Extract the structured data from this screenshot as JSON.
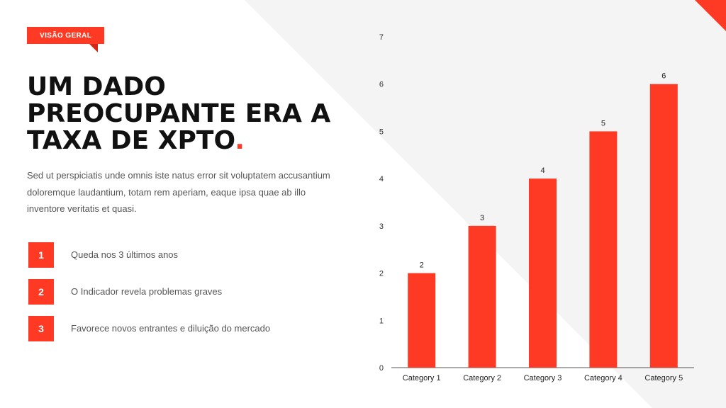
{
  "badge": {
    "label": "VISÃO GERAL"
  },
  "title": {
    "text": "UM DADO PREOCUPANTE ERA A TAXA DE XPTO",
    "dot": "."
  },
  "description": "Sed ut perspiciatis unde omnis iste natus error sit voluptatem accusantium doloremque laudantium, totam rem aperiam, eaque ipsa quae ab illo inventore veritatis et quasi.",
  "list": [
    {
      "number": "1",
      "text": "Queda nos 3 últimos anos"
    },
    {
      "number": "2",
      "text": "O Indicador revela problemas graves"
    },
    {
      "number": "3",
      "text": "Favorece novos entrantes e diluição do mercado"
    }
  ],
  "colors": {
    "accent": "#ff3a24",
    "background_shape": "#f4f4f4"
  },
  "chart_data": {
    "type": "bar",
    "categories": [
      "Category 1",
      "Category 2",
      "Category 3",
      "Category 4",
      "Category 5"
    ],
    "values": [
      2,
      3,
      4,
      5,
      6
    ],
    "data_labels": [
      "2",
      "3",
      "4",
      "5",
      "6"
    ],
    "ylim": [
      0,
      7
    ],
    "yticks": [
      "0",
      "1",
      "2",
      "3",
      "4",
      "5",
      "6",
      "7"
    ],
    "grid": false,
    "legend": "none",
    "title": "",
    "xlabel": "",
    "ylabel": ""
  }
}
